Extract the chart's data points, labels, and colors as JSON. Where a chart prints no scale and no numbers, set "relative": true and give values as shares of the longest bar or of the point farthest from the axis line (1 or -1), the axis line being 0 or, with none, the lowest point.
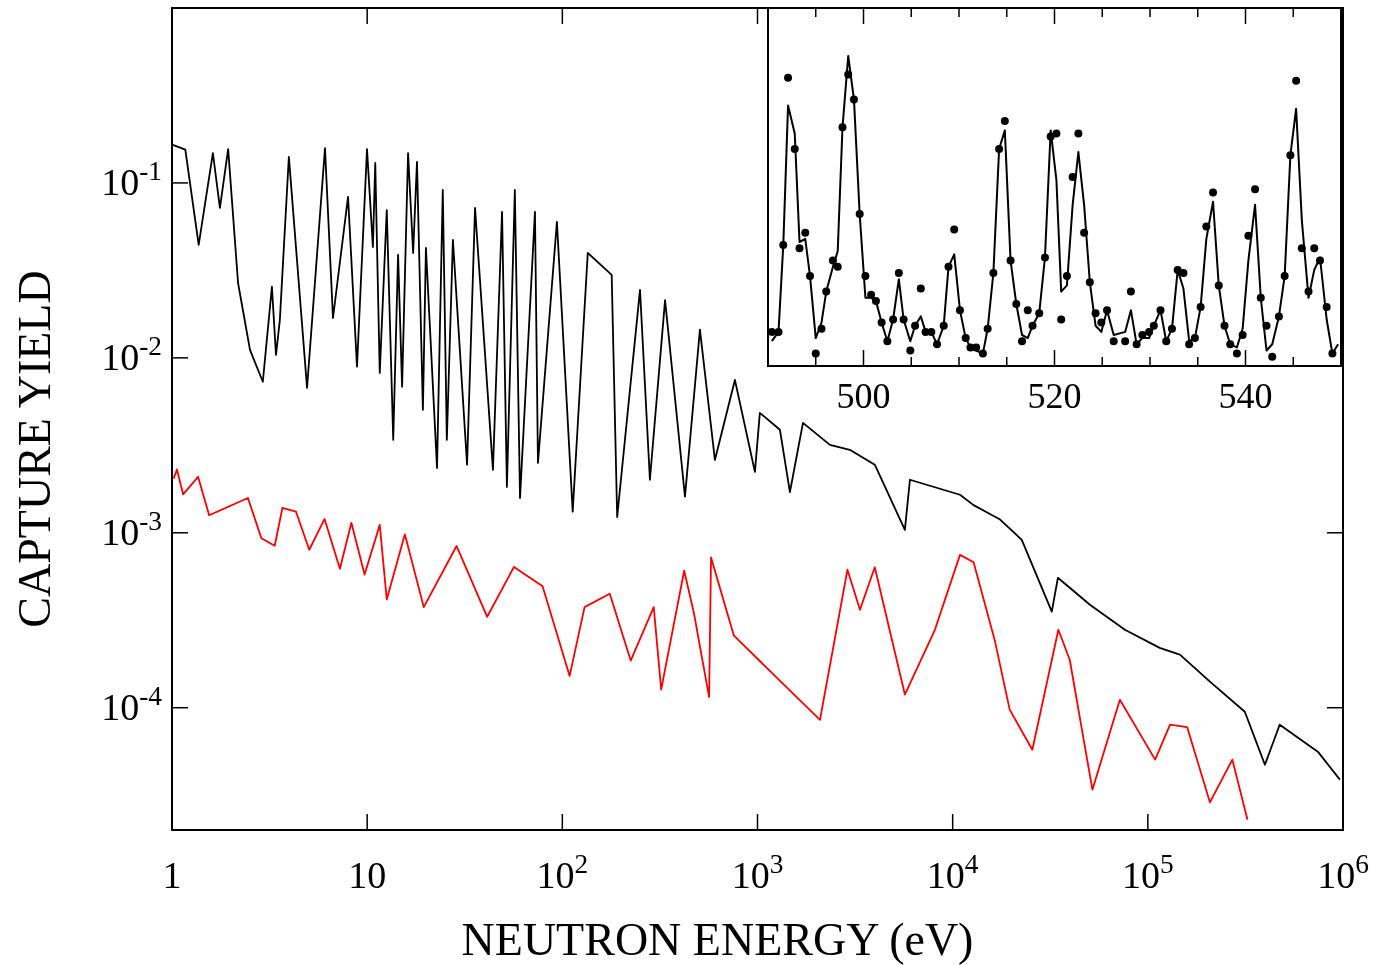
{
  "chart_data": [
    {
      "type": "line",
      "xlabel": "NEUTRON ENERGY (eV)",
      "ylabel": "CAPTURE YIELD",
      "log": "xy",
      "xlim": [
        1,
        1000000
      ],
      "ylim": [
        2e-05,
        1
      ],
      "xticks": [
        1,
        10,
        {
          "value": 100,
          "label": "10$^{2}$"
        },
        {
          "value": 1000,
          "label": "10$^{3}$"
        },
        {
          "value": 10000,
          "label": "10$^{4}$"
        },
        {
          "value": 100000,
          "label": "10$^{5}$"
        },
        {
          "value": 1000000,
          "label": "10$^{6}$"
        }
      ],
      "yticks": [
        {
          "value": 0.0001,
          "label": "10$^{-4}$"
        },
        {
          "value": 0.001,
          "label": "10$^{-3}$"
        },
        {
          "value": 0.01,
          "label": "10$^{-2}$"
        },
        {
          "value": 0.1,
          "label": "10$^{-1}$"
        }
      ],
      "series": [
        {
          "color": "#000000",
          "x": [
            1.01,
            1.17,
            1.37,
            1.62,
            1.76,
            1.94,
            2.18,
            2.51,
            2.92,
            3.25,
            3.41,
            3.57,
            3.97,
            4.92,
            6.08,
            6.68,
            7.98,
            8.87,
            9.98,
            10.7,
            11.0,
            11.6,
            12.6,
            13.6,
            14.4,
            15.1,
            16.2,
            17.2,
            18.0,
            19.3,
            20.0,
            22.8,
            24.4,
            25.6,
            27.5,
            32.5,
            35.7,
            44.1,
            49.1,
            52.0,
            57.1,
            60.7,
            72.4,
            75.0,
            93.8,
            113,
            135,
            179,
            191,
            250,
            281,
            336,
            425,
            507,
            605,
            766,
            970,
            1028,
            1303,
            1466,
            1710,
            2350,
            2972,
            3990,
            5690,
            6040,
            10900,
            12800,
            17500,
            22600,
            32200,
            34600,
            50500,
            76300,
            115000,
            146000,
            208000,
            314000,
            398000,
            474000,
            743000,
            964000
          ],
          "values": [
            0.165,
            0.155,
            0.0443,
            0.148,
            0.072,
            0.156,
            0.0268,
            0.0111,
            0.0073,
            0.0255,
            0.0104,
            0.0165,
            0.141,
            0.00674,
            0.158,
            0.0169,
            0.0832,
            0.0089,
            0.156,
            0.0431,
            0.13,
            0.0082,
            0.07,
            0.0034,
            0.0388,
            0.00683,
            0.148,
            0.0398,
            0.132,
            0.00505,
            0.0425,
            0.00235,
            0.0912,
            0.0034,
            0.0472,
            0.00245,
            0.072,
            0.00229,
            0.0683,
            0.00183,
            0.0912,
            0.00158,
            0.0683,
            0.00251,
            0.0599,
            0.00132,
            0.0398,
            0.0298,
            0.00123,
            0.0245,
            0.00201,
            0.0214,
            0.00161,
            0.0145,
            0.00261,
            0.00748,
            0.00223,
            0.00485,
            0.00388,
            0.00171,
            0.00425,
            0.00318,
            0.00298,
            0.00245,
            0.00104,
            0.00201,
            0.00165,
            0.00144,
            0.00119,
            0.000912,
            0.000354,
            0.000553,
            0.000388,
            0.000279,
            0.00022,
            0.000201,
            0.000141,
            9.48e-05,
            4.72e-05,
            8e-05,
            5.61e-05,
            3.88e-05
          ]
        },
        {
          "color": "#ff0000",
          "x": [
            1.02,
            1.06,
            1.14,
            1.36,
            1.55,
            2.45,
            2.87,
            3.36,
            3.68,
            4.32,
            5.05,
            6.05,
            7.25,
            8.3,
            9.7,
            11.6,
            12.6,
            15.6,
            19.5,
            28.7,
            41.2,
            56.5,
            79.2,
            109,
            130,
            175,
            224,
            294,
            321,
            421,
            472,
            565,
            578,
            757,
            2090,
            2890,
            3350,
            3990,
            5690,
            8110,
            10900,
            12800,
            16400,
            19600,
            25600,
            34800,
            39800,
            52000,
            71900,
            109000,
            130000,
            159000,
            208000,
            271000,
            324000
          ],
          "values": [
            0.00204,
            0.0023,
            0.00166,
            0.00209,
            0.00126,
            0.00158,
            0.00093,
            0.000843,
            0.00139,
            0.00132,
            0.0008,
            0.0012,
            0.000623,
            0.00114,
            0.000577,
            0.00111,
            0.000416,
            0.00098,
            0.000376,
            0.000841,
            0.000331,
            0.000638,
            0.000495,
            0.000152,
            0.000376,
            0.000448,
            0.000186,
            0.000376,
            0.000127,
            0.000607,
            0.000349,
            0.000115,
            0.000723,
            0.000258,
            8.53e-05,
            0.000615,
            0.000363,
            0.000635,
            0.000119,
            0.000279,
            0.000748,
            0.000678,
            0.000245,
            9.75e-05,
            5.75e-05,
            0.000279,
            0.000188,
            3.4e-05,
            0.000111,
            5.05e-05,
            8e-05,
            7.75e-05,
            2.88e-05,
            5.05e-05,
            2.29e-05
          ]
        }
      ]
    },
    {
      "type": "scatter",
      "relative": true,
      "xlim": [
        490,
        550
      ],
      "xticks": [
        {
          "value": 495,
          "label": null
        },
        500,
        {
          "value": 505,
          "label": null
        },
        {
          "value": 510,
          "label": null
        },
        {
          "value": 515,
          "label": null
        },
        520,
        {
          "value": 525,
          "label": null
        },
        {
          "value": 530,
          "label": null
        },
        {
          "value": 535,
          "label": null
        },
        540,
        {
          "value": 545,
          "label": null
        }
      ],
      "series": [
        {
          "marker": "circle",
          "color": "#000000",
          "x": [
            490.4,
            491.1,
            491.6,
            492.1,
            492.8,
            493.3,
            493.9,
            494.4,
            495.0,
            495.6,
            496.1,
            496.8,
            497.3,
            497.8,
            498.4,
            499.0,
            499.6,
            500.2,
            500.8,
            501.3,
            501.9,
            502.5,
            503.1,
            503.7,
            504.2,
            504.9,
            505.4,
            506.0,
            506.5,
            507.1,
            507.7,
            508.4,
            508.9,
            509.5,
            510.1,
            510.7,
            511.2,
            511.8,
            512.5,
            513.0,
            513.6,
            514.2,
            514.8,
            515.4,
            516.0,
            516.6,
            517.2,
            517.7,
            518.4,
            519.0,
            519.6,
            520.2,
            520.7,
            521.3,
            521.9,
            522.5,
            523.1,
            523.7,
            524.3,
            524.9,
            525.5,
            526.2,
            527.4,
            528.0,
            528.6,
            529.2,
            529.9,
            530.4,
            531.1,
            531.7,
            532.3,
            532.9,
            533.5,
            534.1,
            534.7,
            535.3,
            535.9,
            536.6,
            537.2,
            537.8,
            538.4,
            539.1,
            539.7,
            540.3,
            541.0,
            541.6,
            542.2,
            542.8,
            543.5,
            544.1,
            544.7,
            545.3,
            545.9,
            546.6,
            547.2,
            547.8,
            548.5,
            549.1
          ],
          "values": [
            0.11,
            0.11,
            0.39,
            0.93,
            0.7,
            0.38,
            0.43,
            0.29,
            0.04,
            0.12,
            0.24,
            0.34,
            0.32,
            0.77,
            0.94,
            0.86,
            0.49,
            0.29,
            0.23,
            0.21,
            0.14,
            0.08,
            0.15,
            0.3,
            0.15,
            0.05,
            0.13,
            0.25,
            0.11,
            0.11,
            0.07,
            0.13,
            0.32,
            0.44,
            0.18,
            0.09,
            0.06,
            0.06,
            0.04,
            0.12,
            0.3,
            0.7,
            0.79,
            0.34,
            0.2,
            0.08,
            0.18,
            0.13,
            0.17,
            0.35,
            0.74,
            0.75,
            0.15,
            0.29,
            0.61,
            0.75,
            0.43,
            0.27,
            0.17,
            0.14,
            0.18,
            0.08,
            0.08,
            0.24,
            0.07,
            0.1,
            0.11,
            0.13,
            0.18,
            0.08,
            0.12,
            0.31,
            0.3,
            0.07,
            0.09,
            0.19,
            0.45,
            0.56,
            0.26,
            0.13,
            0.07,
            0.04,
            0.1,
            0.42,
            0.57,
            0.22,
            0.13,
            0.03,
            0.16,
            0.29,
            0.68,
            0.92,
            0.38,
            0.24,
            0.38,
            0.34,
            0.19,
            0.04
          ]
        },
        {
          "type": "line",
          "color": "#000000",
          "x": [
            490.4,
            491.1,
            491.6,
            492.1,
            492.8,
            493.3,
            493.9,
            494.4,
            495.0,
            495.6,
            496.1,
            496.8,
            497.3,
            497.8,
            498.4,
            499.0,
            499.6,
            500.2,
            500.8,
            501.3,
            501.9,
            502.5,
            503.1,
            503.7,
            504.2,
            504.9,
            505.4,
            506.0,
            506.5,
            507.1,
            507.7,
            508.4,
            508.9,
            509.5,
            510.1,
            510.7,
            511.2,
            511.8,
            512.5,
            513.0,
            513.6,
            514.2,
            514.8,
            515.4,
            516.0,
            516.6,
            517.2,
            517.7,
            518.4,
            519.0,
            519.6,
            520.2,
            520.7,
            521.3,
            521.9,
            522.5,
            523.1,
            523.7,
            524.3,
            524.9,
            525.5,
            526.2,
            527.4,
            528.0,
            528.6,
            529.2,
            529.9,
            530.4,
            531.1,
            531.7,
            532.3,
            532.9,
            533.5,
            534.1,
            534.7,
            535.3,
            535.9,
            536.6,
            537.2,
            537.8,
            538.4,
            539.1,
            539.7,
            540.3,
            541.0,
            541.6,
            542.2,
            542.8,
            543.5,
            544.1,
            544.7,
            545.3,
            545.9,
            546.6,
            547.2,
            547.8,
            548.5,
            549.1,
            549.7
          ],
          "values": [
            0.08,
            0.11,
            0.39,
            0.84,
            0.75,
            0.4,
            0.41,
            0.29,
            0.09,
            0.14,
            0.24,
            0.32,
            0.37,
            0.77,
            1.0,
            0.86,
            0.49,
            0.22,
            0.22,
            0.21,
            0.14,
            0.08,
            0.15,
            0.28,
            0.15,
            0.08,
            0.13,
            0.16,
            0.11,
            0.11,
            0.07,
            0.13,
            0.32,
            0.36,
            0.18,
            0.09,
            0.06,
            0.05,
            0.04,
            0.12,
            0.3,
            0.7,
            0.76,
            0.34,
            0.2,
            0.1,
            0.09,
            0.13,
            0.17,
            0.35,
            0.76,
            0.6,
            0.24,
            0.26,
            0.52,
            0.69,
            0.52,
            0.27,
            0.13,
            0.11,
            0.18,
            0.1,
            0.11,
            0.18,
            0.07,
            0.09,
            0.09,
            0.13,
            0.18,
            0.08,
            0.12,
            0.31,
            0.25,
            0.08,
            0.09,
            0.19,
            0.41,
            0.53,
            0.26,
            0.13,
            0.07,
            0.06,
            0.12,
            0.34,
            0.52,
            0.22,
            0.05,
            0.07,
            0.16,
            0.29,
            0.68,
            0.83,
            0.47,
            0.22,
            0.31,
            0.35,
            0.15,
            0.04,
            0.07
          ]
        }
      ]
    }
  ]
}
